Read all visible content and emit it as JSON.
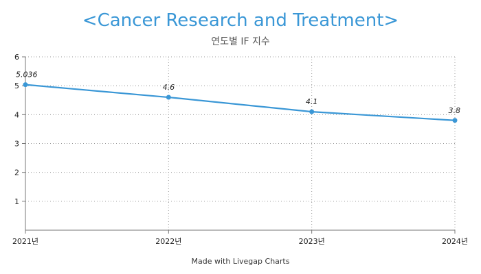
{
  "chart_data": {
    "type": "line",
    "title": "<Cancer Research and Treatment>",
    "subtitle": "연도별 IF 지수",
    "categories": [
      "2021년",
      "2022년",
      "2023년",
      "2024년"
    ],
    "series": [
      {
        "values": [
          5.036,
          4.6,
          4.1,
          3.8
        ],
        "data_labels": [
          "5.036",
          "4.6",
          "4.1",
          "3.8"
        ],
        "color": "#3a97d6"
      }
    ],
    "ylim": [
      0,
      6
    ],
    "yticks": [
      "1",
      "2",
      "3",
      "4",
      "5",
      "6"
    ],
    "grid": true,
    "xlabel": "",
    "ylabel": ""
  },
  "footer": "Made with Livegap Charts"
}
